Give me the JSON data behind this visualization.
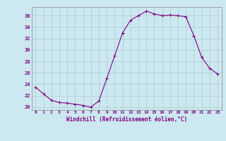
{
  "x": [
    0,
    1,
    2,
    3,
    4,
    5,
    6,
    7,
    8,
    9,
    10,
    11,
    12,
    13,
    14,
    15,
    16,
    17,
    18,
    19,
    20,
    21,
    22,
    23
  ],
  "y": [
    23.5,
    22.3,
    21.2,
    20.8,
    20.7,
    20.5,
    20.3,
    20.0,
    21.1,
    25.0,
    29.0,
    33.0,
    35.2,
    36.0,
    36.8,
    36.3,
    36.0,
    36.1,
    36.0,
    35.8,
    32.5,
    28.7,
    26.8,
    25.8
  ],
  "line_color": "#800080",
  "marker": "+",
  "marker_size": 3,
  "bg_color": "#cce8f0",
  "grid_color": "#aacccc",
  "xlabel": "Windchill (Refroidissement éolien,°C)",
  "xlabel_color": "#800080",
  "ylabel_ticks": [
    20,
    22,
    24,
    26,
    28,
    30,
    32,
    34,
    36
  ],
  "xtick_labels": [
    "0",
    "1",
    "2",
    "3",
    "4",
    "5",
    "6",
    "7",
    "8",
    "9",
    "10",
    "11",
    "12",
    "13",
    "14",
    "15",
    "16",
    "17",
    "18",
    "19",
    "20",
    "21",
    "22",
    "23"
  ],
  "ylim": [
    19.5,
    37.5
  ],
  "xlim": [
    -0.5,
    23.5
  ],
  "figsize": [
    3.2,
    2.0
  ],
  "dpi": 100
}
